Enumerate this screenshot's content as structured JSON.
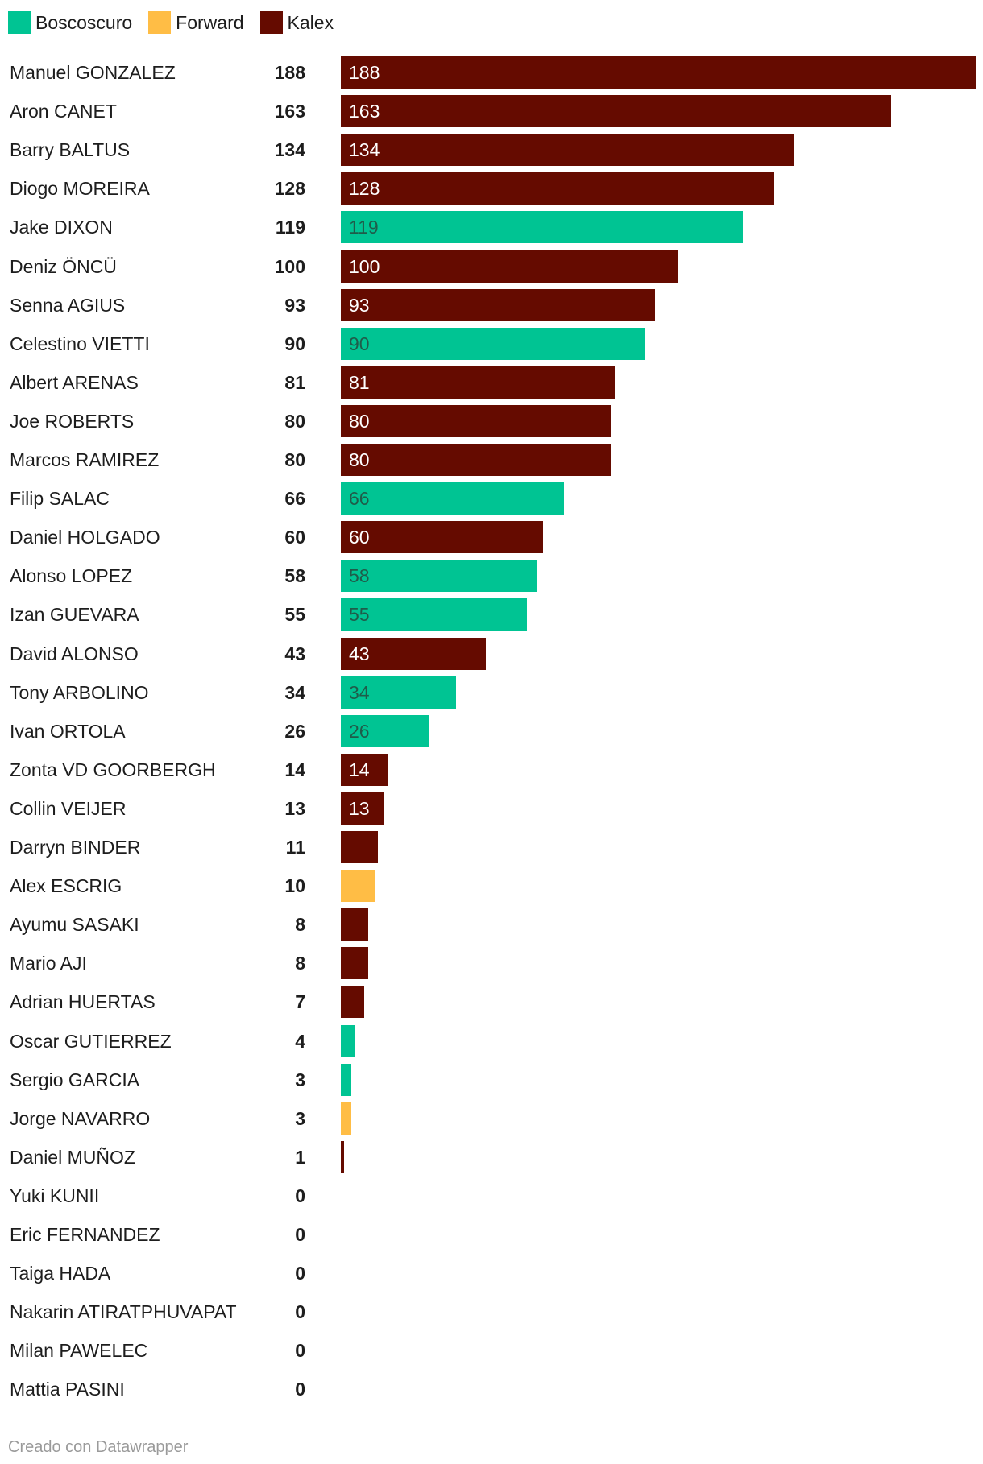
{
  "colors": {
    "Boscoscuro": "#00c493",
    "Forward": "#ffbd45",
    "Kalex": "#650b00"
  },
  "legend": [
    {
      "label": "Boscoscuro",
      "key": "Boscoscuro"
    },
    {
      "label": "Forward",
      "key": "Forward"
    },
    {
      "label": "Kalex",
      "key": "Kalex"
    }
  ],
  "chart_data": {
    "type": "bar",
    "orientation": "horizontal",
    "xlim": [
      0,
      188
    ],
    "categories": [
      "Manuel GONZALEZ",
      "Aron CANET",
      "Barry BALTUS",
      "Diogo MOREIRA",
      "Jake DIXON",
      "Deniz ÖNCÜ",
      "Senna AGIUS",
      "Celestino VIETTI",
      "Albert ARENAS",
      "Joe ROBERTS",
      "Marcos RAMIREZ",
      "Filip SALAC",
      "Daniel HOLGADO",
      "Alonso LOPEZ",
      "Izan GUEVARA",
      "David ALONSO",
      "Tony ARBOLINO",
      "Ivan ORTOLA",
      "Zonta VD GOORBERGH",
      "Collin VEIJER",
      "Darryn BINDER",
      "Alex ESCRIG",
      "Ayumu SASAKI",
      "Mario AJI",
      "Adrian HUERTAS",
      "Oscar GUTIERREZ",
      "Sergio GARCIA",
      "Jorge NAVARRO",
      "Daniel MUÑOZ",
      "Yuki KUNII",
      "Eric FERNANDEZ",
      "Taiga HADA",
      "Nakarin ATIRATPHUVAPAT",
      "Milan PAWELEC",
      "Mattia PASINI"
    ],
    "values": [
      188,
      163,
      134,
      128,
      119,
      100,
      93,
      90,
      81,
      80,
      80,
      66,
      60,
      58,
      55,
      43,
      34,
      26,
      14,
      13,
      11,
      10,
      8,
      8,
      7,
      4,
      3,
      3,
      1,
      0,
      0,
      0,
      0,
      0,
      0
    ],
    "series_by_row": [
      "Kalex",
      "Kalex",
      "Kalex",
      "Kalex",
      "Boscoscuro",
      "Kalex",
      "Kalex",
      "Boscoscuro",
      "Kalex",
      "Kalex",
      "Kalex",
      "Boscoscuro",
      "Kalex",
      "Boscoscuro",
      "Boscoscuro",
      "Kalex",
      "Boscoscuro",
      "Boscoscuro",
      "Kalex",
      "Kalex",
      "Kalex",
      "Forward",
      "Kalex",
      "Kalex",
      "Kalex",
      "Boscoscuro",
      "Boscoscuro",
      "Forward",
      "Kalex",
      "Kalex",
      "Kalex",
      "Kalex",
      "Kalex",
      "Kalex",
      "Kalex"
    ]
  },
  "footer": "Creado con Datawrapper"
}
